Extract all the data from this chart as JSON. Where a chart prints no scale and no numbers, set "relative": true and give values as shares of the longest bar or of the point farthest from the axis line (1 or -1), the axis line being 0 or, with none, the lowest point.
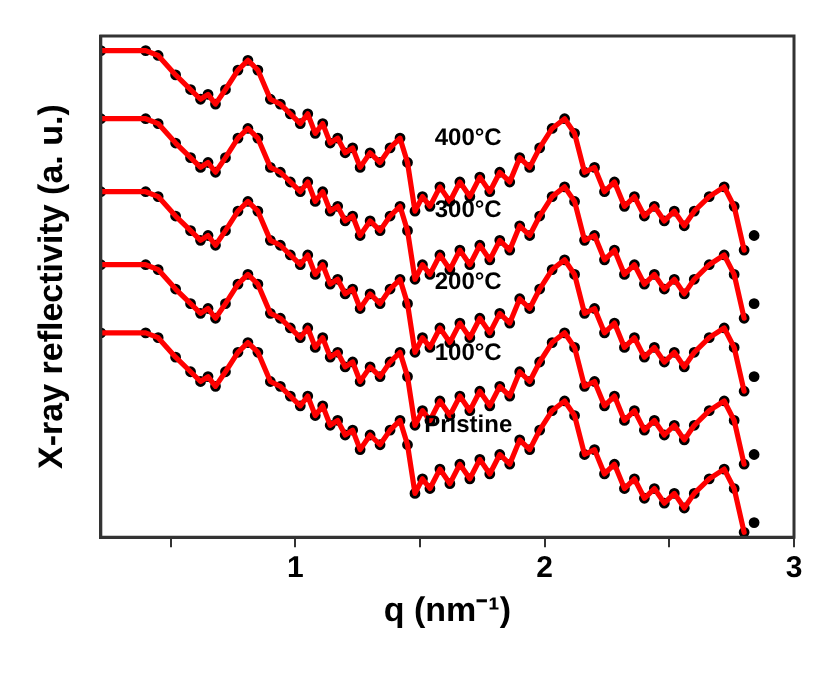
{
  "chart_data": {
    "type": "line",
    "relative": true,
    "xlabel": "q (nm⁻¹)",
    "ylabel": "X-ray reflectivity (a. u.)",
    "xlim": [
      0.22,
      3
    ],
    "xticks": [
      {
        "value": 0.5,
        "label": null
      },
      1,
      {
        "value": 1.5,
        "label": null
      },
      2,
      {
        "value": 2.5,
        "label": null
      },
      3
    ],
    "x": [
      0.22,
      0.4,
      0.45,
      0.52,
      0.58,
      0.62,
      0.65,
      0.68,
      0.72,
      0.77,
      0.81,
      0.85,
      0.9,
      0.94,
      0.98,
      1.02,
      1.05,
      1.08,
      1.11,
      1.14,
      1.17,
      1.2,
      1.23,
      1.26,
      1.3,
      1.34,
      1.38,
      1.42,
      1.45,
      1.48,
      1.51,
      1.54,
      1.58,
      1.62,
      1.66,
      1.7,
      1.74,
      1.78,
      1.82,
      1.86,
      1.9,
      1.94,
      1.98,
      2.03,
      2.08,
      2.12,
      2.16,
      2.2,
      2.24,
      2.28,
      2.32,
      2.36,
      2.4,
      2.44,
      2.48,
      2.52,
      2.56,
      2.6,
      2.66,
      2.72,
      2.76,
      2.8
    ],
    "series": [
      {
        "type": "scatter",
        "marker": "circle",
        "color": "#000000",
        "x": [
          0.22,
          0.4,
          0.45,
          0.52,
          0.58,
          0.62,
          0.65,
          0.68,
          0.72,
          0.77,
          0.81,
          0.85,
          0.9,
          0.94,
          0.98,
          1.02,
          1.05,
          1.08,
          1.11,
          1.14,
          1.17,
          1.2,
          1.23,
          1.26,
          1.3,
          1.34,
          1.38,
          1.42,
          1.45,
          1.48,
          1.51,
          1.54,
          1.58,
          1.62,
          1.66,
          1.7,
          1.74,
          1.78,
          1.82,
          1.86,
          1.9,
          1.94,
          1.98,
          2.03,
          2.08,
          2.12,
          2.16,
          2.2,
          2.24,
          2.28,
          2.32,
          2.36,
          2.4,
          2.44,
          2.48,
          2.52,
          2.56,
          2.6,
          2.66,
          2.72,
          2.76,
          2.8,
          2.84
        ],
        "values": [
          0.42,
          0.42,
          0.41,
          0.37,
          0.34,
          0.32,
          0.33,
          0.31,
          0.34,
          0.38,
          0.4,
          0.38,
          0.32,
          0.31,
          0.29,
          0.27,
          0.29,
          0.25,
          0.27,
          0.23,
          0.24,
          0.21,
          0.22,
          0.18,
          0.21,
          0.19,
          0.22,
          0.24,
          0.19,
          0.09,
          0.12,
          0.1,
          0.14,
          0.11,
          0.15,
          0.12,
          0.16,
          0.13,
          0.17,
          0.15,
          0.2,
          0.18,
          0.22,
          0.26,
          0.28,
          0.25,
          0.17,
          0.18,
          0.13,
          0.15,
          0.1,
          0.12,
          0.08,
          0.1,
          0.07,
          0.09,
          0.06,
          0.09,
          0.12,
          0.14,
          0.1,
          0.01,
          0.03
        ]
      },
      {
        "type": "scatter",
        "marker": "circle",
        "color": "#000000",
        "x": [
          0.22,
          0.4,
          0.45,
          0.52,
          0.58,
          0.62,
          0.65,
          0.68,
          0.72,
          0.77,
          0.81,
          0.85,
          0.9,
          0.94,
          0.98,
          1.02,
          1.05,
          1.08,
          1.11,
          1.14,
          1.17,
          1.2,
          1.23,
          1.26,
          1.3,
          1.34,
          1.38,
          1.42,
          1.45,
          1.48,
          1.51,
          1.54,
          1.58,
          1.62,
          1.66,
          1.7,
          1.74,
          1.78,
          1.82,
          1.86,
          1.9,
          1.94,
          1.98,
          2.03,
          2.08,
          2.12,
          2.16,
          2.2,
          2.24,
          2.28,
          2.32,
          2.36,
          2.4,
          2.44,
          2.48,
          2.52,
          2.56,
          2.6,
          2.66,
          2.72,
          2.76,
          2.8,
          2.84
        ],
        "values": [
          0.56,
          0.56,
          0.55,
          0.51,
          0.48,
          0.46,
          0.47,
          0.45,
          0.48,
          0.52,
          0.54,
          0.52,
          0.46,
          0.45,
          0.43,
          0.41,
          0.43,
          0.39,
          0.41,
          0.37,
          0.38,
          0.35,
          0.36,
          0.32,
          0.35,
          0.33,
          0.36,
          0.38,
          0.33,
          0.23,
          0.26,
          0.24,
          0.28,
          0.25,
          0.29,
          0.26,
          0.3,
          0.27,
          0.31,
          0.29,
          0.34,
          0.32,
          0.36,
          0.4,
          0.42,
          0.39,
          0.31,
          0.32,
          0.27,
          0.29,
          0.24,
          0.26,
          0.22,
          0.24,
          0.21,
          0.23,
          0.2,
          0.23,
          0.26,
          0.28,
          0.24,
          0.15,
          0.17
        ]
      },
      {
        "type": "scatter",
        "marker": "circle",
        "color": "#000000",
        "x": [
          0.22,
          0.4,
          0.45,
          0.52,
          0.58,
          0.62,
          0.65,
          0.68,
          0.72,
          0.77,
          0.81,
          0.85,
          0.9,
          0.94,
          0.98,
          1.02,
          1.05,
          1.08,
          1.11,
          1.14,
          1.17,
          1.2,
          1.23,
          1.26,
          1.3,
          1.34,
          1.38,
          1.42,
          1.45,
          1.48,
          1.51,
          1.54,
          1.58,
          1.62,
          1.66,
          1.7,
          1.74,
          1.78,
          1.82,
          1.86,
          1.9,
          1.94,
          1.98,
          2.03,
          2.08,
          2.12,
          2.16,
          2.2,
          2.24,
          2.28,
          2.32,
          2.36,
          2.4,
          2.44,
          2.48,
          2.52,
          2.56,
          2.6,
          2.66,
          2.72,
          2.76,
          2.8,
          2.84
        ],
        "values": [
          0.71,
          0.71,
          0.7,
          0.66,
          0.63,
          0.61,
          0.62,
          0.6,
          0.63,
          0.67,
          0.69,
          0.67,
          0.61,
          0.6,
          0.58,
          0.56,
          0.58,
          0.54,
          0.56,
          0.52,
          0.53,
          0.5,
          0.51,
          0.47,
          0.5,
          0.48,
          0.51,
          0.53,
          0.48,
          0.38,
          0.41,
          0.39,
          0.43,
          0.4,
          0.44,
          0.41,
          0.45,
          0.42,
          0.46,
          0.44,
          0.49,
          0.47,
          0.51,
          0.55,
          0.57,
          0.54,
          0.46,
          0.47,
          0.42,
          0.44,
          0.39,
          0.41,
          0.37,
          0.39,
          0.36,
          0.38,
          0.35,
          0.38,
          0.41,
          0.43,
          0.39,
          0.3,
          0.33
        ]
      },
      {
        "type": "scatter",
        "marker": "circle",
        "color": "#000000",
        "x": [
          0.22,
          0.4,
          0.45,
          0.52,
          0.58,
          0.62,
          0.65,
          0.68,
          0.72,
          0.77,
          0.81,
          0.85,
          0.9,
          0.94,
          0.98,
          1.02,
          1.05,
          1.08,
          1.11,
          1.14,
          1.17,
          1.2,
          1.23,
          1.26,
          1.3,
          1.34,
          1.38,
          1.42,
          1.45,
          1.48,
          1.51,
          1.54,
          1.58,
          1.62,
          1.66,
          1.7,
          1.74,
          1.78,
          1.82,
          1.86,
          1.9,
          1.94,
          1.98,
          2.03,
          2.08,
          2.12,
          2.16,
          2.2,
          2.24,
          2.28,
          2.32,
          2.36,
          2.4,
          2.44,
          2.48,
          2.52,
          2.56,
          2.6,
          2.66,
          2.72,
          2.76,
          2.8,
          2.84
        ],
        "values": [
          0.86,
          0.86,
          0.85,
          0.81,
          0.78,
          0.76,
          0.77,
          0.75,
          0.78,
          0.82,
          0.84,
          0.82,
          0.76,
          0.75,
          0.73,
          0.71,
          0.73,
          0.69,
          0.71,
          0.67,
          0.68,
          0.65,
          0.66,
          0.62,
          0.65,
          0.63,
          0.66,
          0.68,
          0.63,
          0.53,
          0.56,
          0.54,
          0.58,
          0.55,
          0.59,
          0.56,
          0.6,
          0.57,
          0.61,
          0.59,
          0.64,
          0.62,
          0.66,
          0.7,
          0.72,
          0.69,
          0.61,
          0.62,
          0.57,
          0.59,
          0.54,
          0.56,
          0.52,
          0.54,
          0.51,
          0.53,
          0.5,
          0.53,
          0.56,
          0.58,
          0.54,
          0.45,
          0.48
        ]
      },
      {
        "type": "scatter",
        "marker": "circle",
        "color": "#000000",
        "x": [
          0.22,
          0.4,
          0.45,
          0.52,
          0.58,
          0.62,
          0.65,
          0.68,
          0.72,
          0.77,
          0.81,
          0.85,
          0.9,
          0.94,
          0.98,
          1.02,
          1.05,
          1.08,
          1.11,
          1.14,
          1.17,
          1.2,
          1.23,
          1.26,
          1.3,
          1.34,
          1.38,
          1.42,
          1.45,
          1.48,
          1.51,
          1.54,
          1.58,
          1.62,
          1.66,
          1.7,
          1.74,
          1.78,
          1.82,
          1.86,
          1.9,
          1.94,
          1.98,
          2.03,
          2.08,
          2.12,
          2.16,
          2.2,
          2.24,
          2.28,
          2.32,
          2.36,
          2.4,
          2.44,
          2.48,
          2.52,
          2.56,
          2.6,
          2.66,
          2.72,
          2.76,
          2.8,
          2.84
        ],
        "values": [
          1.0,
          1.0,
          0.99,
          0.95,
          0.92,
          0.9,
          0.91,
          0.89,
          0.92,
          0.96,
          0.98,
          0.96,
          0.9,
          0.89,
          0.87,
          0.85,
          0.87,
          0.83,
          0.85,
          0.81,
          0.82,
          0.79,
          0.8,
          0.76,
          0.79,
          0.77,
          0.8,
          0.82,
          0.77,
          0.67,
          0.7,
          0.68,
          0.72,
          0.69,
          0.73,
          0.7,
          0.74,
          0.71,
          0.75,
          0.73,
          0.78,
          0.76,
          0.8,
          0.84,
          0.86,
          0.83,
          0.75,
          0.76,
          0.71,
          0.73,
          0.68,
          0.7,
          0.66,
          0.68,
          0.65,
          0.67,
          0.64,
          0.67,
          0.7,
          0.72,
          0.68,
          0.59,
          0.62
        ]
      },
      {
        "color": "#ff0000",
        "values": [
          0.42,
          0.42,
          0.41,
          0.37,
          0.34,
          0.32,
          0.33,
          0.31,
          0.34,
          0.38,
          0.4,
          0.38,
          0.32,
          0.31,
          0.29,
          0.27,
          0.29,
          0.25,
          0.27,
          0.23,
          0.24,
          0.21,
          0.22,
          0.18,
          0.21,
          0.19,
          0.22,
          0.24,
          0.19,
          0.09,
          0.12,
          0.1,
          0.14,
          0.11,
          0.15,
          0.12,
          0.16,
          0.13,
          0.17,
          0.15,
          0.2,
          0.18,
          0.22,
          0.26,
          0.28,
          0.25,
          0.17,
          0.18,
          0.13,
          0.15,
          0.1,
          0.12,
          0.08,
          0.1,
          0.07,
          0.09,
          0.06,
          0.09,
          0.12,
          0.14,
          0.1,
          0.01
        ]
      },
      {
        "color": "#ff0000",
        "values": [
          0.56,
          0.56,
          0.55,
          0.51,
          0.48,
          0.46,
          0.47,
          0.45,
          0.48,
          0.52,
          0.54,
          0.52,
          0.46,
          0.45,
          0.43,
          0.41,
          0.43,
          0.39,
          0.41,
          0.37,
          0.38,
          0.35,
          0.36,
          0.32,
          0.35,
          0.33,
          0.36,
          0.38,
          0.33,
          0.23,
          0.26,
          0.24,
          0.28,
          0.25,
          0.29,
          0.26,
          0.3,
          0.27,
          0.31,
          0.29,
          0.34,
          0.32,
          0.36,
          0.4,
          0.42,
          0.39,
          0.31,
          0.32,
          0.27,
          0.29,
          0.24,
          0.26,
          0.22,
          0.24,
          0.21,
          0.23,
          0.2,
          0.23,
          0.26,
          0.28,
          0.24,
          0.15
        ]
      },
      {
        "color": "#ff0000",
        "values": [
          0.71,
          0.71,
          0.7,
          0.66,
          0.63,
          0.61,
          0.62,
          0.6,
          0.63,
          0.67,
          0.69,
          0.67,
          0.61,
          0.6,
          0.58,
          0.56,
          0.58,
          0.54,
          0.56,
          0.52,
          0.53,
          0.5,
          0.51,
          0.47,
          0.5,
          0.48,
          0.51,
          0.53,
          0.48,
          0.38,
          0.41,
          0.39,
          0.43,
          0.4,
          0.44,
          0.41,
          0.45,
          0.42,
          0.46,
          0.44,
          0.49,
          0.47,
          0.51,
          0.55,
          0.57,
          0.54,
          0.46,
          0.47,
          0.42,
          0.44,
          0.39,
          0.41,
          0.37,
          0.39,
          0.36,
          0.38,
          0.35,
          0.38,
          0.41,
          0.43,
          0.39,
          0.3
        ]
      },
      {
        "color": "#ff0000",
        "values": [
          0.86,
          0.86,
          0.85,
          0.81,
          0.78,
          0.76,
          0.77,
          0.75,
          0.78,
          0.82,
          0.84,
          0.82,
          0.76,
          0.75,
          0.73,
          0.71,
          0.73,
          0.69,
          0.71,
          0.67,
          0.68,
          0.65,
          0.66,
          0.62,
          0.65,
          0.63,
          0.66,
          0.68,
          0.63,
          0.53,
          0.56,
          0.54,
          0.58,
          0.55,
          0.59,
          0.56,
          0.6,
          0.57,
          0.61,
          0.59,
          0.64,
          0.62,
          0.66,
          0.7,
          0.72,
          0.69,
          0.61,
          0.62,
          0.57,
          0.59,
          0.54,
          0.56,
          0.52,
          0.54,
          0.51,
          0.53,
          0.5,
          0.53,
          0.56,
          0.58,
          0.54,
          0.45
        ]
      },
      {
        "color": "#ff0000",
        "values": [
          1.0,
          1.0,
          0.99,
          0.95,
          0.92,
          0.9,
          0.91,
          0.89,
          0.92,
          0.96,
          0.98,
          0.96,
          0.9,
          0.89,
          0.87,
          0.85,
          0.87,
          0.83,
          0.85,
          0.81,
          0.82,
          0.79,
          0.8,
          0.76,
          0.79,
          0.77,
          0.8,
          0.82,
          0.77,
          0.67,
          0.7,
          0.68,
          0.72,
          0.69,
          0.73,
          0.7,
          0.74,
          0.71,
          0.75,
          0.73,
          0.78,
          0.76,
          0.8,
          0.84,
          0.86,
          0.83,
          0.75,
          0.76,
          0.71,
          0.73,
          0.68,
          0.7,
          0.66,
          0.68,
          0.65,
          0.67,
          0.64,
          0.67,
          0.7,
          0.72,
          0.68,
          0.59
        ]
      }
    ],
    "annotations": [
      "400°C",
      "300°C",
      "200°C",
      "100°C",
      "Pristine"
    ]
  }
}
